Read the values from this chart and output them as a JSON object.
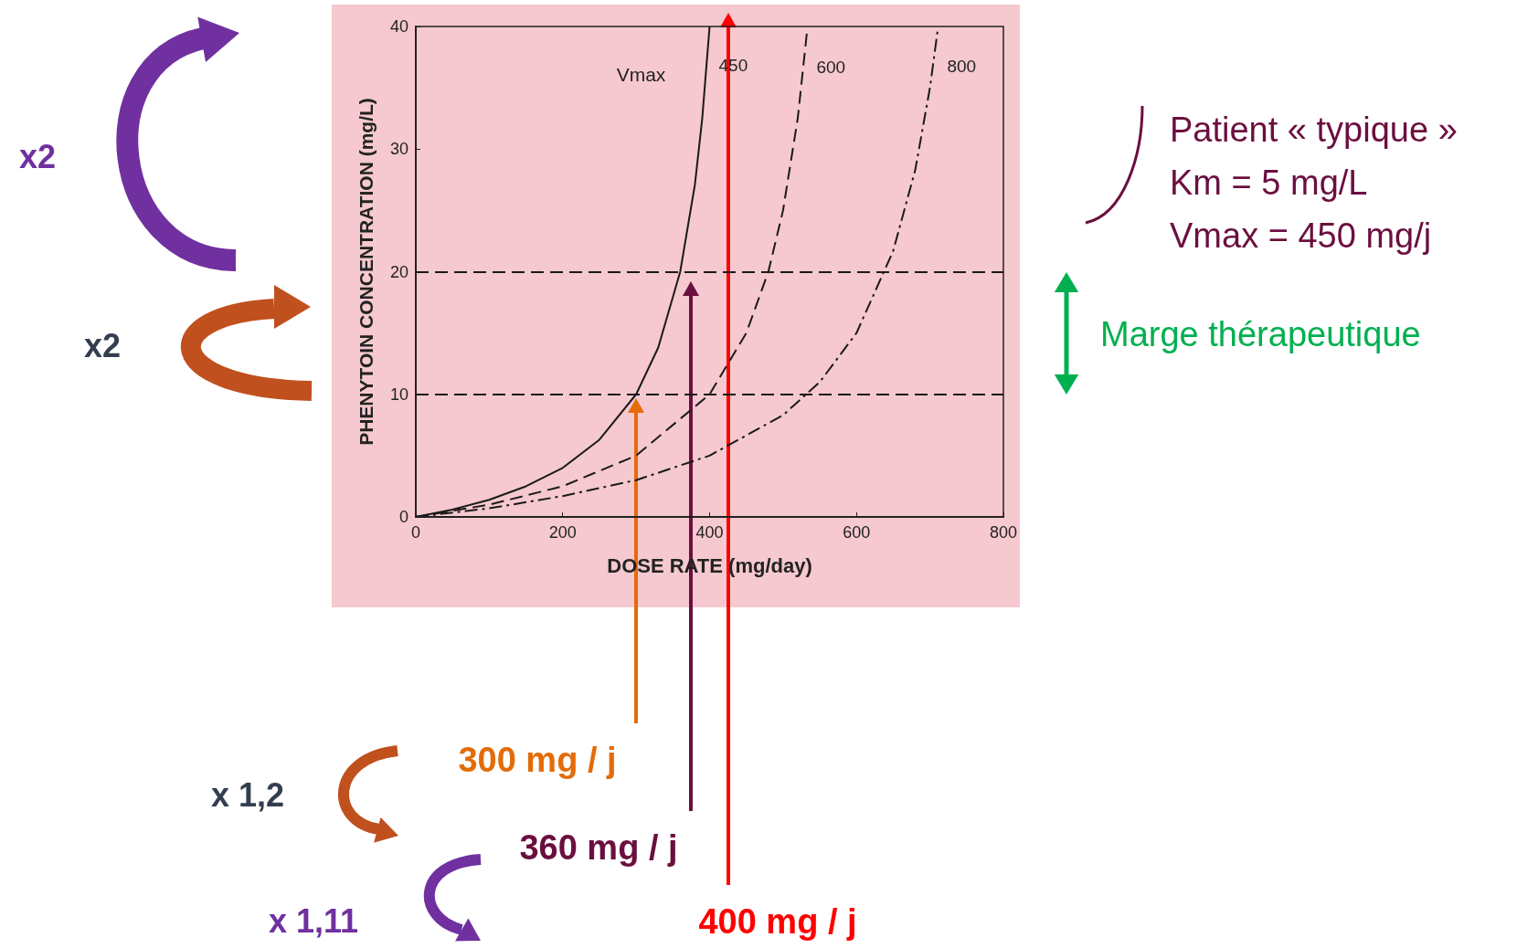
{
  "chart_data": {
    "type": "line",
    "xlabel": "DOSE RATE (mg/day)",
    "ylabel": "PHENYTOIN CONCENTRATION (mg/L)",
    "xlim": [
      0,
      800
    ],
    "xticks": [
      0,
      200,
      400,
      600,
      800
    ],
    "ylim": [
      0,
      40
    ],
    "yticks": [
      0,
      10,
      20,
      30,
      40
    ],
    "marker": "none",
    "series": [
      {
        "name": "450",
        "color": "#1a1a1a",
        "line_style": "solid",
        "x": [
          0,
          50,
          100,
          150,
          200,
          250,
          300,
          330,
          360,
          380,
          390,
          400
        ],
        "values": [
          0,
          0.6,
          1.4,
          2.5,
          4,
          6.3,
          10,
          13.8,
          20,
          27.1,
          32.5,
          40
        ]
      },
      {
        "name": "600",
        "color": "#1a1a1a",
        "line_style": "dashed",
        "x": [
          0,
          100,
          200,
          300,
          400,
          450,
          480,
          500,
          520,
          533
        ],
        "values": [
          0,
          1,
          2.5,
          5,
          10,
          15,
          20,
          25,
          32.5,
          39.8
        ]
      },
      {
        "name": "800",
        "color": "#1a1a1a",
        "line_style": "dotted",
        "x": [
          0,
          100,
          200,
          300,
          400,
          500,
          550,
          600,
          650,
          680,
          700,
          711
        ],
        "values": [
          0,
          0.7,
          1.7,
          3,
          5,
          8.3,
          11,
          15,
          21.7,
          28.3,
          35,
          39.9
        ]
      }
    ],
    "ref_lines": [
      {
        "axis": "y",
        "value": 10,
        "line_style": "dashed",
        "color": "#1a1a1a"
      },
      {
        "axis": "y",
        "value": 20,
        "line_style": "dashed",
        "color": "#1a1a1a"
      }
    ],
    "annotations": [
      "Vmax",
      "x2",
      "x2",
      "Patient « typique »",
      "Km = 5 mg/L",
      "Vmax = 450 mg/j",
      "Marge thérapeutique",
      "300 mg / j",
      "360 mg / j",
      "400 mg / j",
      "x 1,2",
      "x 1,11"
    ]
  }
}
